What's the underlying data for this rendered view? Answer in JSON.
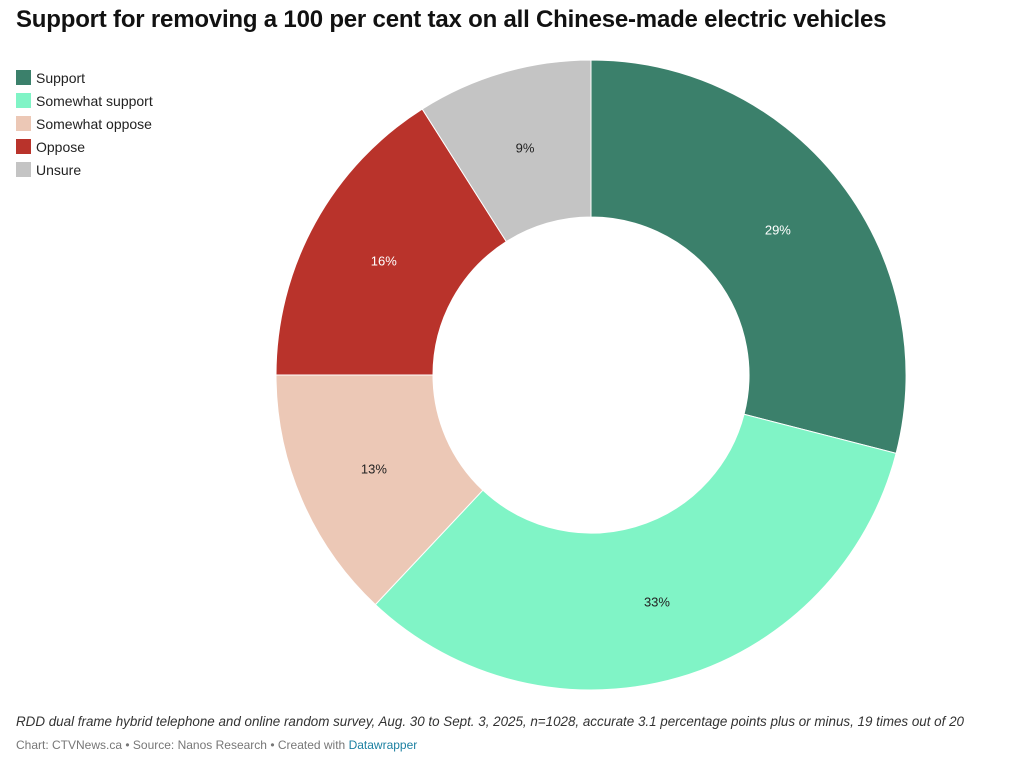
{
  "chart_data": {
    "type": "pie",
    "variant": "donut",
    "title": "Support for removing a 100 per cent tax on all Chinese-made electric vehicles",
    "categories": [
      "Support",
      "Somewhat support",
      "Somewhat oppose",
      "Oppose",
      "Unsure"
    ],
    "values": [
      29,
      33,
      13,
      16,
      9
    ],
    "value_labels": [
      "29%",
      "33%",
      "13%",
      "16%",
      "9%"
    ],
    "colors": [
      "#3b806b",
      "#80f4c6",
      "#ecc8b6",
      "#b9332b",
      "#c4c4c4"
    ],
    "label_colors": [
      "#ffffff",
      "#222222",
      "#222222",
      "#ffffff",
      "#222222"
    ],
    "start_angle": "top",
    "direction": "clockwise",
    "legend_position": "top-left"
  },
  "notes": "RDD dual frame hybrid telephone and online random survey, Aug. 30 to Sept. 3, 2025, n=1028, accurate 3.1 percentage points plus or minus, 19 times out of 20",
  "footer": {
    "chart_credit": "Chart: CTVNews.ca",
    "separator": " • ",
    "source": "Source: Nanos Research",
    "created_with": "Created with ",
    "tool_link": "Datawrapper"
  }
}
